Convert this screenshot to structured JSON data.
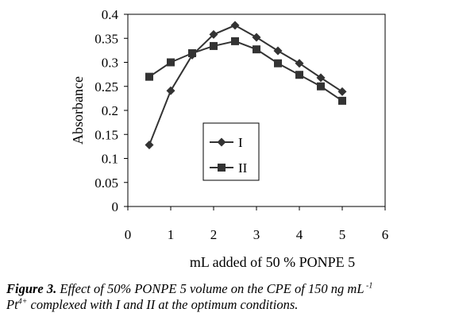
{
  "chart_data": {
    "type": "line",
    "xlabel": "mL added of 50 % PONPE 5",
    "ylabel": "Absorbance",
    "xlim": [
      0,
      6
    ],
    "ylim": [
      0,
      0.4
    ],
    "x_ticks": [
      "0",
      "1",
      "2",
      "3",
      "4",
      "5",
      "6"
    ],
    "y_ticks": [
      "0",
      "0.05",
      "0.1",
      "0.15",
      "0.2",
      "0.25",
      "0.3",
      "0.35",
      "0.4"
    ],
    "grid": false,
    "legend_position": "center",
    "series": [
      {
        "name": "I",
        "marker": "diamond",
        "color": "#333333",
        "points": [
          [
            0.5,
            0.128
          ],
          [
            1.0,
            0.241
          ],
          [
            1.5,
            0.315
          ],
          [
            2.0,
            0.358
          ],
          [
            2.5,
            0.377
          ],
          [
            3.0,
            0.352
          ],
          [
            3.5,
            0.324
          ],
          [
            4.0,
            0.298
          ],
          [
            4.5,
            0.268
          ],
          [
            5.0,
            0.239
          ]
        ]
      },
      {
        "name": "II",
        "marker": "square",
        "color": "#333333",
        "points": [
          [
            0.5,
            0.27
          ],
          [
            1.0,
            0.3
          ],
          [
            1.5,
            0.319
          ],
          [
            2.0,
            0.334
          ],
          [
            2.5,
            0.344
          ],
          [
            3.0,
            0.327
          ],
          [
            3.5,
            0.298
          ],
          [
            4.0,
            0.274
          ],
          [
            4.5,
            0.25
          ],
          [
            5.0,
            0.22
          ]
        ]
      }
    ]
  },
  "caption": {
    "label": "Figure 3.",
    "text_line1": " Effect of 50% PONPE 5 volume on the CPE of 150 ng mL",
    "superscript1": " -1",
    "text_line2_prefix": "Pt",
    "superscript2": "4+",
    "text_line2_suffix": " complexed with I and II  at  the optimum conditions."
  }
}
